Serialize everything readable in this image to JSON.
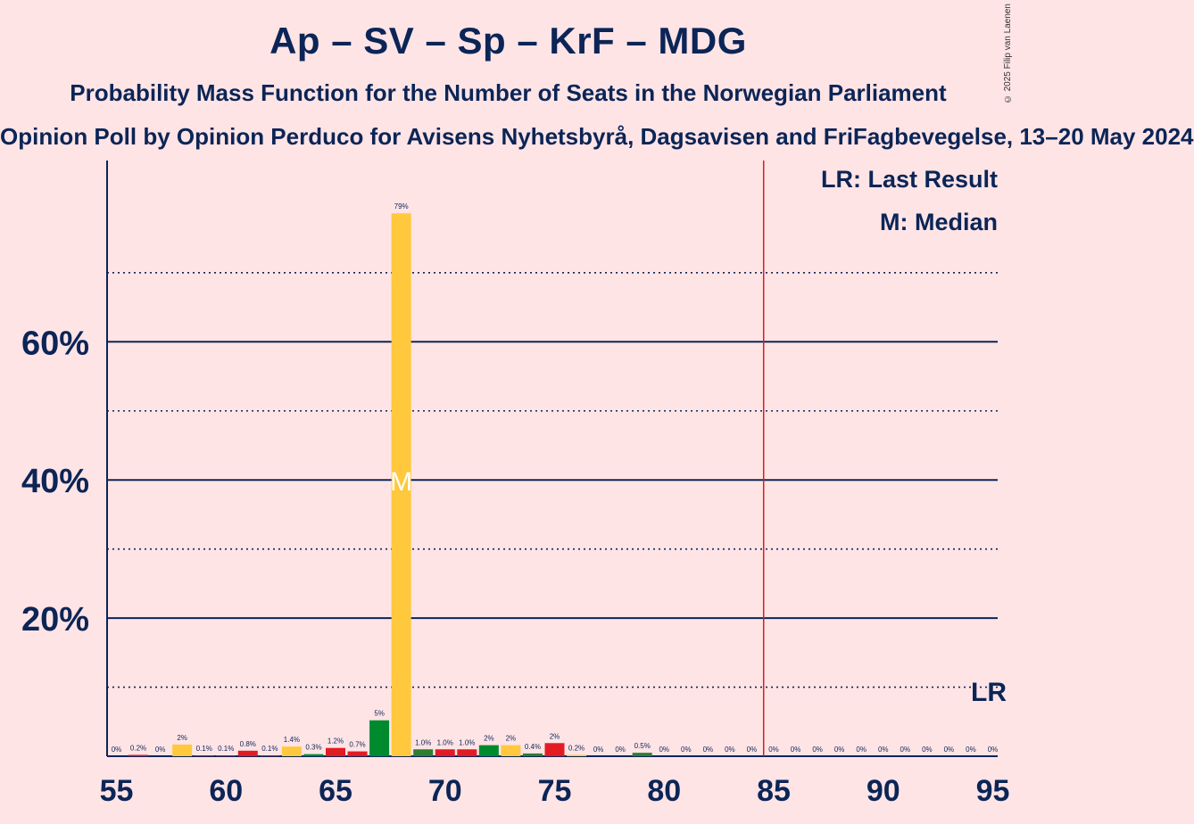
{
  "title": "Ap – SV – Sp – KrF – MDG",
  "subtitle": "Probability Mass Function for the Number of Seats in the Norwegian Parliament",
  "subtitle2": "Opinion Poll by Opinion Perduco for Avisens Nyhetsbyrå, Dagsavisen and FriFagbevegelse, 13–20 May 2024",
  "copyright": "© 2025 Filip van Laenen",
  "legend": {
    "lr": "LR: Last Result",
    "m": "M: Median"
  },
  "colors": {
    "background": "#FFE4E6",
    "text": "#0B2556",
    "last_result_line": "#CC2222",
    "party_colors": [
      "#E31B23",
      "#FFC83D",
      "#008A2E",
      "#FFC83D",
      "#2E7D32"
    ]
  },
  "chart_data": {
    "type": "bar",
    "xlabel": "",
    "ylabel": "",
    "xlim": [
      55,
      95
    ],
    "ylim": [
      0,
      85
    ],
    "y_major_ticks": [
      20,
      40,
      60
    ],
    "y_major_tick_labels": [
      "20%",
      "40%",
      "60%"
    ],
    "y_minor_ticks": [
      10,
      30,
      50,
      70
    ],
    "x_ticks": [
      55,
      60,
      65,
      70,
      75,
      80,
      85,
      90,
      95
    ],
    "x_tick_labels": [
      "55",
      "60",
      "65",
      "70",
      "75",
      "80",
      "85",
      "90",
      "95"
    ],
    "median": 68,
    "median_marker": "M",
    "last_result": 85,
    "last_result_marker": "LR",
    "bars": [
      {
        "x": 55,
        "value": 0,
        "label": "0%",
        "color": "#E31B23"
      },
      {
        "x": 56,
        "value": 0.2,
        "label": "0.2%",
        "color": "#E31B23"
      },
      {
        "x": 57,
        "value": 0,
        "label": "0%",
        "color": "#E31B23"
      },
      {
        "x": 58,
        "value": 1.7,
        "label": "2%",
        "color": "#FFC83D"
      },
      {
        "x": 59,
        "value": 0.1,
        "label": "0.1%",
        "color": "#E31B23"
      },
      {
        "x": 60,
        "value": 0.1,
        "label": "0.1%",
        "color": "#E31B23"
      },
      {
        "x": 61,
        "value": 0.8,
        "label": "0.8%",
        "color": "#E31B23"
      },
      {
        "x": 62,
        "value": 0.1,
        "label": "0.1%",
        "color": "#E31B23"
      },
      {
        "x": 63,
        "value": 1.4,
        "label": "1.4%",
        "color": "#FFC83D"
      },
      {
        "x": 64,
        "value": 0.3,
        "label": "0.3%",
        "color": "#008A2E"
      },
      {
        "x": 65,
        "value": 1.2,
        "label": "1.2%",
        "color": "#E31B23"
      },
      {
        "x": 66,
        "value": 0.7,
        "label": "0.7%",
        "color": "#E31B23"
      },
      {
        "x": 67,
        "value": 5.2,
        "label": "5%",
        "color": "#008A2E"
      },
      {
        "x": 68,
        "value": 78.6,
        "label": "79%",
        "color": "#FFC83D"
      },
      {
        "x": 69,
        "value": 1.0,
        "label": "1.0%",
        "color": "#2E7D32"
      },
      {
        "x": 70,
        "value": 1.0,
        "label": "1.0%",
        "color": "#E31B23"
      },
      {
        "x": 71,
        "value": 1.0,
        "label": "1.0%",
        "color": "#E31B23"
      },
      {
        "x": 72,
        "value": 1.6,
        "label": "2%",
        "color": "#008A2E"
      },
      {
        "x": 73,
        "value": 1.6,
        "label": "2%",
        "color": "#FFC83D"
      },
      {
        "x": 74,
        "value": 0.4,
        "label": "0.4%",
        "color": "#2E7D32"
      },
      {
        "x": 75,
        "value": 1.9,
        "label": "2%",
        "color": "#E31B23"
      },
      {
        "x": 76,
        "value": 0.2,
        "label": "0.2%",
        "color": "#FFC83D"
      },
      {
        "x": 77,
        "value": 0,
        "label": "0%",
        "color": "#E31B23"
      },
      {
        "x": 78,
        "value": 0,
        "label": "0%",
        "color": "#E31B23"
      },
      {
        "x": 79,
        "value": 0.5,
        "label": "0.5%",
        "color": "#2E7D32"
      },
      {
        "x": 80,
        "value": 0,
        "label": "0%",
        "color": "#E31B23"
      },
      {
        "x": 81,
        "value": 0,
        "label": "0%",
        "color": "#E31B23"
      },
      {
        "x": 82,
        "value": 0,
        "label": "0%",
        "color": "#E31B23"
      },
      {
        "x": 83,
        "value": 0,
        "label": "0%",
        "color": "#E31B23"
      },
      {
        "x": 84,
        "value": 0,
        "label": "0%",
        "color": "#E31B23"
      },
      {
        "x": 85,
        "value": 0,
        "label": "0%",
        "color": "#E31B23"
      },
      {
        "x": 86,
        "value": 0,
        "label": "0%",
        "color": "#E31B23"
      },
      {
        "x": 87,
        "value": 0,
        "label": "0%",
        "color": "#E31B23"
      },
      {
        "x": 88,
        "value": 0,
        "label": "0%",
        "color": "#E31B23"
      },
      {
        "x": 89,
        "value": 0,
        "label": "0%",
        "color": "#E31B23"
      },
      {
        "x": 90,
        "value": 0,
        "label": "0%",
        "color": "#E31B23"
      },
      {
        "x": 91,
        "value": 0,
        "label": "0%",
        "color": "#E31B23"
      },
      {
        "x": 92,
        "value": 0,
        "label": "0%",
        "color": "#E31B23"
      },
      {
        "x": 93,
        "value": 0,
        "label": "0%",
        "color": "#E31B23"
      },
      {
        "x": 94,
        "value": 0,
        "label": "0%",
        "color": "#E31B23"
      },
      {
        "x": 95,
        "value": 0,
        "label": "0%",
        "color": "#E31B23"
      }
    ]
  }
}
